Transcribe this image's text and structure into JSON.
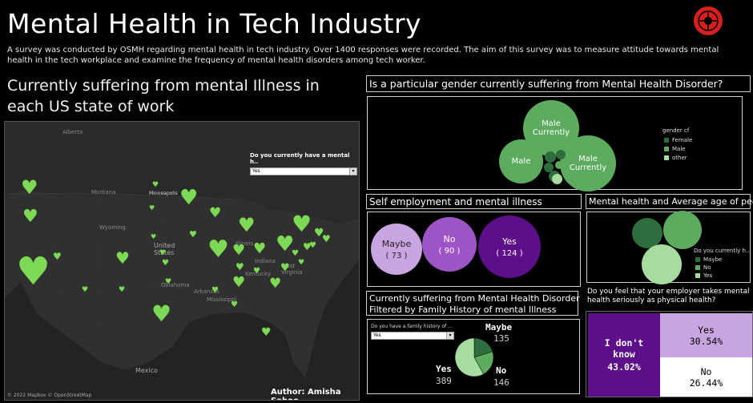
{
  "header": {
    "title": "Mental Health in Tech Industry",
    "description": "A survey was conducted by OSMH regarding mental health in tech industry. Over 1400 responses were recorded. The aim of this survey was to measure attitude towards mental health in the tech workplace and examine the frequency of mental health disorders among tech worker."
  },
  "map": {
    "title": "Currently suffering from mental Illness in each US state of work",
    "filter_label": "Do you currently have a mental h..",
    "filter_value": "Yes",
    "attribution": "© 2022 Mapbox © OpenStreetMap",
    "author": "Author: Amisha Sahoo",
    "labels": {
      "alberta": "Alberta",
      "montana": "Montana",
      "wyoming": "Wyoming",
      "us": "United\nStates",
      "mexico": "Mexico",
      "ok": "Oklahoma",
      "ark": "Arkansas",
      "miss": "Mississippi",
      "ind": "Indiana",
      "ky": "Kentucky",
      "wv": "West\nVirginia",
      "ill": "Illinois"
    }
  },
  "gender": {
    "title": "Is a particular gender currently suffering from Mental Health Disorder?",
    "bubble1_line1": "Male",
    "bubble1_line2": "Currently",
    "bubble2": "Male",
    "bubble3_line1": "Male",
    "bubble3_line2": "Currently",
    "legend_title": "gender cf",
    "legend": [
      "Female",
      "Male",
      "other"
    ],
    "colors": {
      "female": "#2e6e3e",
      "male": "#5cab5e",
      "other": "#a6dca0"
    }
  },
  "self_emp": {
    "title": "Self employment and mental illness",
    "bubbles": [
      {
        "label": "Maybe",
        "value": "( 73 )"
      },
      {
        "label": "No",
        "value": "( 90 )"
      },
      {
        "label": "Yes",
        "value": "( 124 )"
      }
    ],
    "colors": {
      "maybe": "#c8a5e0",
      "no": "#9d55c6",
      "yes": "#5c0f89"
    }
  },
  "age": {
    "title": "Mental health and Average age of people",
    "legend_title": "Do you currently h..",
    "legend": [
      "Maybe",
      "No",
      "Yes"
    ]
  },
  "family": {
    "title_line1": "Currently suffering from Mental Health Disorder",
    "title_line2": "Filtered by Family History of mental Illness",
    "filter_label": "Do you have a family history of ...",
    "filter_value": "Yes",
    "maybe_label": "Maybe",
    "maybe_value": "135",
    "yes_label": "Yes",
    "yes_value": "389",
    "no_label": "No",
    "no_value": "146",
    "chart_data": {
      "type": "pie",
      "categories": [
        "Maybe",
        "No",
        "Yes"
      ],
      "values": [
        135,
        146,
        389
      ]
    }
  },
  "employer": {
    "title": "Do you feel that your employer takes mental health seriously as physical health?",
    "dontknow_label": "I don't\nknow",
    "dontknow_value": "43.02%",
    "yes_label": "Yes",
    "yes_value": "30.54%",
    "no_label": "No",
    "no_value": "26.44%"
  }
}
